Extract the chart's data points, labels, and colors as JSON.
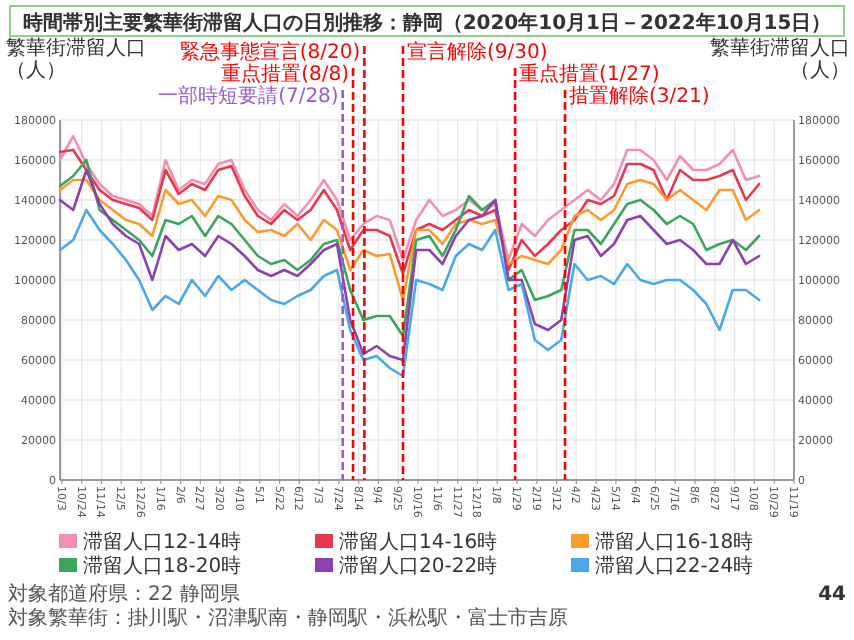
{
  "chart_data": {
    "type": "line",
    "title": "時間帯別主要繁華街滞留人口の日別推移：静岡（2020年10月1日－2022年10月15日）",
    "ylabel": "繁華街滞留人口（人）",
    "y2label": "繁華街滞留人口（人）",
    "x": [
      "2020-10-01",
      "2020-10-15",
      "2020-10-29",
      "2020-11-12",
      "2020-11-26",
      "2020-12-10",
      "2020-12-24",
      "2021-01-07",
      "2021-01-21",
      "2021-02-04",
      "2021-02-18",
      "2021-03-04",
      "2021-03-18",
      "2021-04-01",
      "2021-04-15",
      "2021-04-29",
      "2021-05-13",
      "2021-05-27",
      "2021-06-10",
      "2021-06-24",
      "2021-07-08",
      "2021-07-22",
      "2021-08-05",
      "2021-08-19",
      "2021-09-02",
      "2021-09-16",
      "2021-09-30",
      "2021-10-14",
      "2021-10-28",
      "2021-11-11",
      "2021-11-25",
      "2021-12-09",
      "2021-12-23",
      "2022-01-06",
      "2022-01-20",
      "2022-02-03",
      "2022-02-17",
      "2022-03-03",
      "2022-03-17",
      "2022-03-31",
      "2022-04-14",
      "2022-04-28",
      "2022-05-12",
      "2022-05-26",
      "2022-06-09",
      "2022-06-23",
      "2022-07-07",
      "2022-07-21",
      "2022-08-04",
      "2022-08-18",
      "2022-09-01",
      "2022-09-15",
      "2022-09-29",
      "2022-10-13"
    ],
    "series": [
      {
        "name": "滞留人口12-14時",
        "color": "#f48fb1",
        "values": [
          160000,
          172000,
          158000,
          148000,
          142000,
          140000,
          138000,
          132000,
          160000,
          145000,
          150000,
          148000,
          158000,
          160000,
          145000,
          135000,
          130000,
          138000,
          132000,
          140000,
          150000,
          140000,
          120000,
          128000,
          132000,
          130000,
          110000,
          130000,
          140000,
          132000,
          135000,
          140000,
          135000,
          138000,
          110000,
          128000,
          122000,
          130000,
          135000,
          140000,
          145000,
          140000,
          148000,
          165000,
          165000,
          160000,
          150000,
          162000,
          155000,
          155000,
          158000,
          165000,
          150000,
          152000
        ]
      },
      {
        "name": "滞留人口14-16時",
        "color": "#e8384f",
        "values": [
          164000,
          165000,
          155000,
          145000,
          140000,
          138000,
          136000,
          130000,
          155000,
          143000,
          148000,
          145000,
          155000,
          157000,
          142000,
          132000,
          128000,
          135000,
          130000,
          135000,
          145000,
          135000,
          115000,
          125000,
          125000,
          122000,
          103000,
          125000,
          128000,
          125000,
          130000,
          135000,
          132000,
          135000,
          105000,
          120000,
          112000,
          118000,
          125000,
          130000,
          140000,
          138000,
          142000,
          158000,
          158000,
          155000,
          140000,
          155000,
          150000,
          150000,
          152000,
          155000,
          140000,
          148000
        ]
      },
      {
        "name": "滞留人口16-18時",
        "color": "#fd9a2e",
        "values": [
          145000,
          150000,
          150000,
          140000,
          135000,
          130000,
          128000,
          122000,
          145000,
          138000,
          140000,
          132000,
          142000,
          140000,
          130000,
          124000,
          125000,
          122000,
          128000,
          120000,
          130000,
          125000,
          105000,
          115000,
          112000,
          113000,
          90000,
          125000,
          125000,
          118000,
          128000,
          130000,
          128000,
          130000,
          108000,
          112000,
          110000,
          108000,
          115000,
          132000,
          135000,
          130000,
          135000,
          148000,
          150000,
          148000,
          140000,
          145000,
          140000,
          135000,
          145000,
          145000,
          130000,
          135000
        ]
      },
      {
        "name": "滞留人口18-20時",
        "color": "#3aa55d",
        "values": [
          147000,
          152000,
          160000,
          135000,
          130000,
          125000,
          120000,
          112000,
          130000,
          128000,
          132000,
          122000,
          132000,
          128000,
          120000,
          112000,
          108000,
          110000,
          105000,
          110000,
          118000,
          120000,
          95000,
          80000,
          82000,
          82000,
          72000,
          120000,
          122000,
          112000,
          125000,
          142000,
          135000,
          140000,
          100000,
          105000,
          90000,
          92000,
          95000,
          125000,
          125000,
          118000,
          128000,
          138000,
          140000,
          135000,
          128000,
          132000,
          128000,
          115000,
          118000,
          120000,
          115000,
          122000
        ]
      },
      {
        "name": "滞留人口20-22時",
        "color": "#8e3fb0",
        "values": [
          140000,
          135000,
          155000,
          138000,
          128000,
          122000,
          118000,
          100000,
          122000,
          115000,
          118000,
          112000,
          122000,
          118000,
          112000,
          105000,
          102000,
          105000,
          102000,
          108000,
          115000,
          118000,
          80000,
          63000,
          67000,
          62000,
          60000,
          115000,
          115000,
          108000,
          122000,
          130000,
          132000,
          140000,
          100000,
          100000,
          78000,
          75000,
          80000,
          120000,
          122000,
          112000,
          118000,
          130000,
          132000,
          125000,
          118000,
          120000,
          115000,
          108000,
          108000,
          120000,
          108000,
          112000
        ]
      },
      {
        "name": "滞留人口22-24時",
        "color": "#48a8ea",
        "values": [
          115000,
          120000,
          135000,
          125000,
          118000,
          110000,
          100000,
          85000,
          92000,
          88000,
          100000,
          92000,
          102000,
          95000,
          100000,
          95000,
          90000,
          88000,
          92000,
          95000,
          102000,
          105000,
          75000,
          60000,
          62000,
          56000,
          52000,
          100000,
          98000,
          95000,
          112000,
          118000,
          115000,
          125000,
          95000,
          98000,
          70000,
          65000,
          70000,
          108000,
          100000,
          102000,
          98000,
          108000,
          100000,
          98000,
          100000,
          100000,
          95000,
          88000,
          75000,
          95000,
          95000,
          90000
        ]
      }
    ],
    "xlim": [
      "2020-10-01",
      "2022-11-19"
    ],
    "xticks": [
      {
        "value": "2020-10-03",
        "label": "10/3"
      },
      {
        "value": "2020-10-24",
        "label": "10/24"
      },
      {
        "value": "2020-11-14",
        "label": "11/14"
      },
      {
        "value": "2020-12-05",
        "label": "12/5"
      },
      {
        "value": "2020-12-26",
        "label": "12/26"
      },
      {
        "value": "2021-01-16",
        "label": "1/16"
      },
      {
        "value": "2021-02-06",
        "label": "2/6"
      },
      {
        "value": "2021-02-27",
        "label": "2/27"
      },
      {
        "value": "2021-03-20",
        "label": "3/20"
      },
      {
        "value": "2021-04-10",
        "label": "4/10"
      },
      {
        "value": "2021-05-01",
        "label": "5/1"
      },
      {
        "value": "2021-05-22",
        "label": "5/22"
      },
      {
        "value": "2021-06-12",
        "label": "6/12"
      },
      {
        "value": "2021-07-03",
        "label": "7/3"
      },
      {
        "value": "2021-07-24",
        "label": "7/24"
      },
      {
        "value": "2021-08-14",
        "label": "8/14"
      },
      {
        "value": "2021-09-04",
        "label": "9/4"
      },
      {
        "value": "2021-09-25",
        "label": "9/25"
      },
      {
        "value": "2021-10-16",
        "label": "10/16"
      },
      {
        "value": "2021-11-06",
        "label": "11/6"
      },
      {
        "value": "2021-11-27",
        "label": "11/27"
      },
      {
        "value": "2021-12-18",
        "label": "12/18"
      },
      {
        "value": "2022-01-08",
        "label": "1/8"
      },
      {
        "value": "2022-01-29",
        "label": "1/29"
      },
      {
        "value": "2022-02-19",
        "label": "2/19"
      },
      {
        "value": "2022-03-12",
        "label": "3/12"
      },
      {
        "value": "2022-04-02",
        "label": "4/2"
      },
      {
        "value": "2022-04-23",
        "label": "4/23"
      },
      {
        "value": "2022-05-14",
        "label": "5/14"
      },
      {
        "value": "2022-06-04",
        "label": "6/4"
      },
      {
        "value": "2022-06-25",
        "label": "6/25"
      },
      {
        "value": "2022-07-16",
        "label": "7/16"
      },
      {
        "value": "2022-08-06",
        "label": "8/6"
      },
      {
        "value": "2022-08-27",
        "label": "8/27"
      },
      {
        "value": "2022-09-17",
        "label": "9/17"
      },
      {
        "value": "2022-10-08",
        "label": "10/8"
      },
      {
        "value": "2022-10-29",
        "label": "10/29"
      },
      {
        "value": "2022-11-19",
        "label": "11/19"
      }
    ],
    "ylim": [
      0,
      180000
    ],
    "yticks": [
      0,
      20000,
      40000,
      60000,
      80000,
      100000,
      120000,
      140000,
      160000,
      180000
    ],
    "y2lim": [
      0,
      180000
    ],
    "y2ticks": [
      0,
      20000,
      40000,
      60000,
      80000,
      100000,
      120000,
      140000,
      160000,
      180000
    ],
    "ref_lines": [
      {
        "axis": "x",
        "value": "2021-07-28",
        "label": "一部時短要請(7/28)",
        "color": "#9b59d0",
        "line_style": "dashed"
      },
      {
        "axis": "x",
        "value": "2021-08-08",
        "label": "重点措置(8/8)",
        "color": "#ff0000",
        "line_style": "dashed"
      },
      {
        "axis": "x",
        "value": "2021-08-20",
        "label": "緊急事態宣言(8/20)",
        "color": "#ff0000",
        "line_style": "dashed"
      },
      {
        "axis": "x",
        "value": "2021-09-30",
        "label": "宣言解除(9/30)",
        "color": "#ff0000",
        "line_style": "dashed"
      },
      {
        "axis": "x",
        "value": "2022-01-27",
        "label": "重点措置(1/27)",
        "color": "#ff0000",
        "line_style": "dashed"
      },
      {
        "axis": "x",
        "value": "2022-03-21",
        "label": "措置解除(3/21)",
        "color": "#ff0000",
        "line_style": "dashed"
      }
    ],
    "annotations": [
      "対象都道府県：22 静岡県",
      "対象繁華街：掛川駅・沼津駅南・静岡駅・浜松駅・富士市吉原",
      "44"
    ],
    "grid": true,
    "legend": "bottom",
    "line_style": "solid"
  }
}
